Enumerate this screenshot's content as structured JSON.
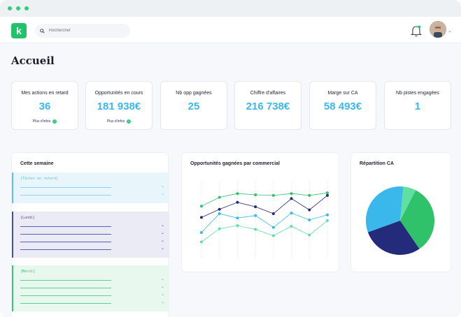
{
  "app": {
    "logo_letter": "k"
  },
  "search": {
    "placeholder": "Rechercher"
  },
  "page": {
    "title": "Accueil"
  },
  "kpis": [
    {
      "label": "Mes actions en retard",
      "value": "36",
      "more": "Plus d'infos"
    },
    {
      "label": "Opportunités en cours",
      "value": "181 938€",
      "more": "Plus d'infos"
    },
    {
      "label": "Nb opp gagnées",
      "value": "25",
      "more": ""
    },
    {
      "label": "Chiffre d'affaires",
      "value": "216 738€",
      "more": ""
    },
    {
      "label": "Marge sur CA",
      "value": "58 493€",
      "more": ""
    },
    {
      "label": "Nb pistes engagées",
      "value": "1",
      "more": ""
    }
  ],
  "week": {
    "title": "Cette semaine",
    "days": [
      {
        "label": "[Tâches en retard]",
        "items": 2,
        "color": "#8fd3f0",
        "bg": "#e8f6fc",
        "border": "#59c3ef",
        "chev": "#59c3ef"
      },
      {
        "label": "[Lundi]",
        "items": 4,
        "color": "#5a5fb8",
        "bg": "#ebebf6",
        "border": "#4b4f9e",
        "chev": "#4b4f9e"
      },
      {
        "label": "[Mardi]",
        "items": 4,
        "color": "#5fd08e",
        "bg": "#e9f8ef",
        "border": "#3cc57a",
        "chev": "#3cc57a"
      }
    ]
  },
  "line_panel": {
    "title": "Opportunités gagnées par commercial"
  },
  "pie_panel": {
    "title": "Répartition CA"
  },
  "colors": {
    "accent": "#20c26a",
    "kpi_value": "#3ab8ec",
    "navy": "#232b7a",
    "sky": "#3ab8ec",
    "mint": "#5fe0a0"
  },
  "chart_data": [
    {
      "type": "line",
      "title": "Opportunités gagnées par commercial",
      "x": [
        1,
        2,
        3,
        4,
        5,
        6,
        7,
        8
      ],
      "series": [
        {
          "color": "#2fc26a",
          "values": [
            8.2,
            9.6,
            10.2,
            10.0,
            9.9,
            10.2,
            9.9,
            10.3
          ]
        },
        {
          "color": "#232b7a",
          "values": [
            6.4,
            7.7,
            8.8,
            8.1,
            7.0,
            9.4,
            7.6,
            9.9
          ]
        },
        {
          "color": "#3ab8ec",
          "values": [
            4.0,
            7.0,
            6.3,
            6.7,
            4.8,
            7.1,
            6.0,
            6.8
          ]
        },
        {
          "color": "#5fe0a0",
          "values": [
            2.5,
            4.6,
            5.1,
            4.5,
            3.5,
            5.0,
            3.6,
            5.9
          ]
        }
      ],
      "ylim": [
        0,
        12
      ]
    },
    {
      "type": "pie",
      "title": "Répartition CA",
      "slices": [
        {
          "color": "#2fc26a",
          "value": 33
        },
        {
          "color": "#232b7a",
          "value": 29
        },
        {
          "color": "#3ab8ec",
          "value": 32
        },
        {
          "color": "#5fe0a0",
          "value": 6
        }
      ]
    }
  ]
}
